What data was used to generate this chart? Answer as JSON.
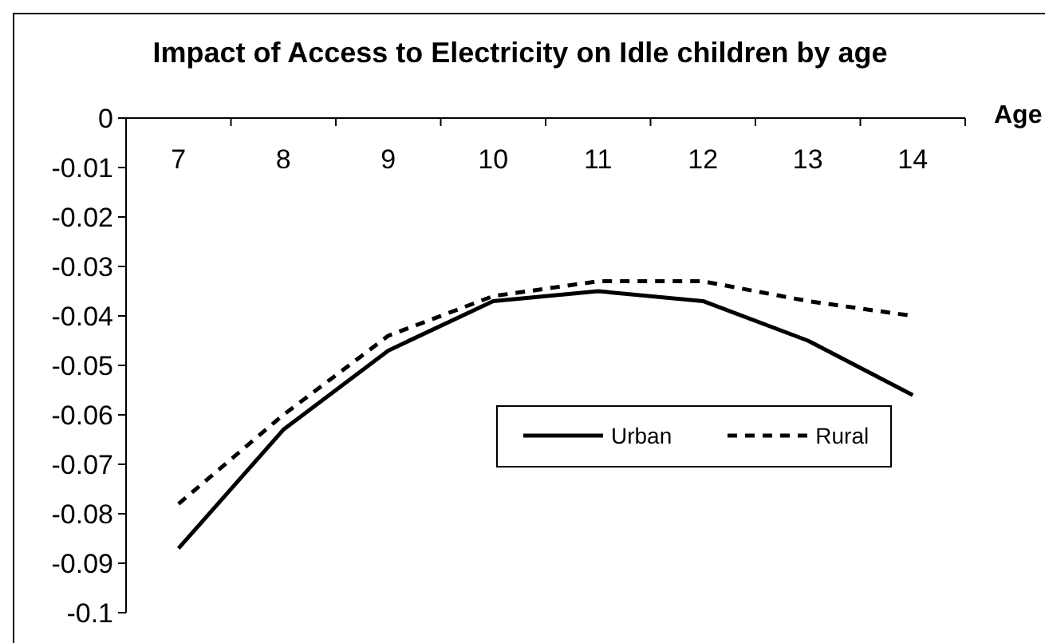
{
  "chart_data": {
    "type": "line",
    "title": "Impact of Access to Electricity on Idle children by age",
    "xlabel": "Age",
    "categories": [
      "7",
      "8",
      "9",
      "10",
      "11",
      "12",
      "13",
      "14"
    ],
    "series": [
      {
        "name": "Urban",
        "color": "#000000",
        "line_style": "solid",
        "values": [
          -0.087,
          -0.063,
          -0.047,
          -0.037,
          -0.035,
          -0.037,
          -0.045,
          -0.056
        ]
      },
      {
        "name": "Rural",
        "color": "#000000",
        "line_style": "dashed",
        "values": [
          -0.078,
          -0.06,
          -0.044,
          -0.036,
          -0.033,
          -0.033,
          -0.037,
          -0.04
        ]
      }
    ],
    "ylim": [
      -0.1,
      0
    ],
    "yticks": [
      0,
      -0.01,
      -0.02,
      -0.03,
      -0.04,
      -0.05,
      -0.06,
      -0.07,
      -0.08,
      -0.09,
      -0.1
    ],
    "legend": "right"
  }
}
